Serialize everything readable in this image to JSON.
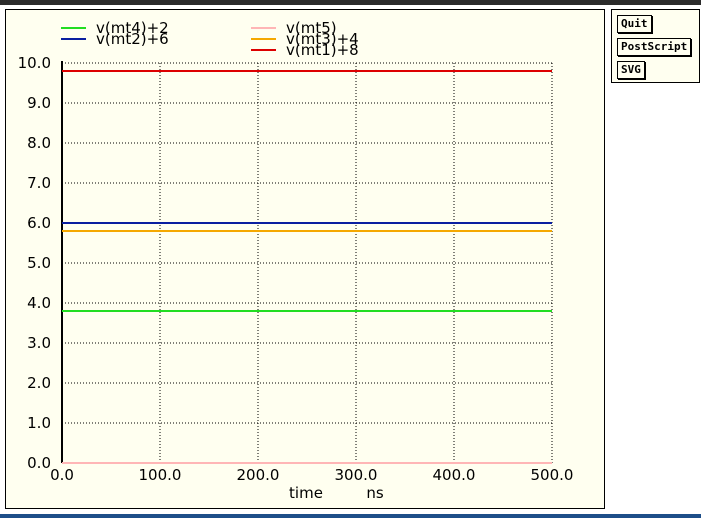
{
  "buttons": {
    "quit": "Quit",
    "postscript": "PostScript",
    "svg": "SVG"
  },
  "chart_data": {
    "type": "line",
    "xlabel": "time",
    "xunit": "ns",
    "ylabel": "",
    "xlim": [
      0,
      500
    ],
    "ylim": [
      0,
      10
    ],
    "xticks": [
      "0.0",
      "100.0",
      "200.0",
      "300.0",
      "400.0",
      "500.0"
    ],
    "yticks": [
      "0.0",
      "1.0",
      "2.0",
      "3.0",
      "4.0",
      "5.0",
      "6.0",
      "7.0",
      "8.0",
      "9.0",
      "10.0"
    ],
    "grid": true,
    "legend_position": "top",
    "series": [
      {
        "name": "v(mt4)+2",
        "color": "#22dd22",
        "x": [
          0,
          500
        ],
        "y": [
          3.8,
          3.8
        ]
      },
      {
        "name": "v(mt2)+6",
        "color": "#0a1fa0",
        "x": [
          0,
          500
        ],
        "y": [
          6.0,
          6.0
        ]
      },
      {
        "name": "v(mt5)",
        "color": "#ffb6b6",
        "x": [
          0,
          500
        ],
        "y": [
          0.0,
          0.0
        ]
      },
      {
        "name": "v(mt3)+4",
        "color": "#f5a800",
        "x": [
          0,
          500
        ],
        "y": [
          5.8,
          5.8
        ]
      },
      {
        "name": "v(mt1)+8",
        "color": "#dd0000",
        "x": [
          0,
          500
        ],
        "y": [
          9.8,
          9.8
        ]
      }
    ]
  }
}
